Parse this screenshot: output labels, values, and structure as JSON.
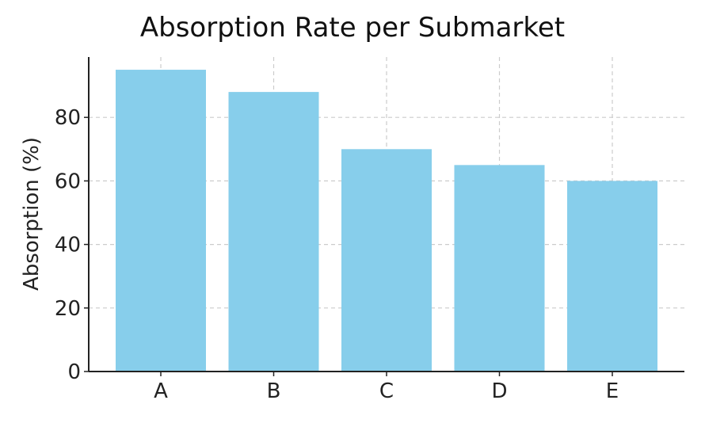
{
  "chart_data": {
    "type": "bar",
    "title": "Absorption Rate per Submarket",
    "xlabel": "",
    "ylabel": "Absorption (%)",
    "categories": [
      "A",
      "B",
      "C",
      "D",
      "E"
    ],
    "values": [
      95,
      88,
      70,
      65,
      60
    ],
    "ylim": [
      0,
      99
    ],
    "yticks": [
      0,
      20,
      40,
      60,
      80
    ],
    "grid": true,
    "colors": {
      "bar": "#87ceeb",
      "grid": "#cccccc",
      "axis": "#222222"
    }
  }
}
